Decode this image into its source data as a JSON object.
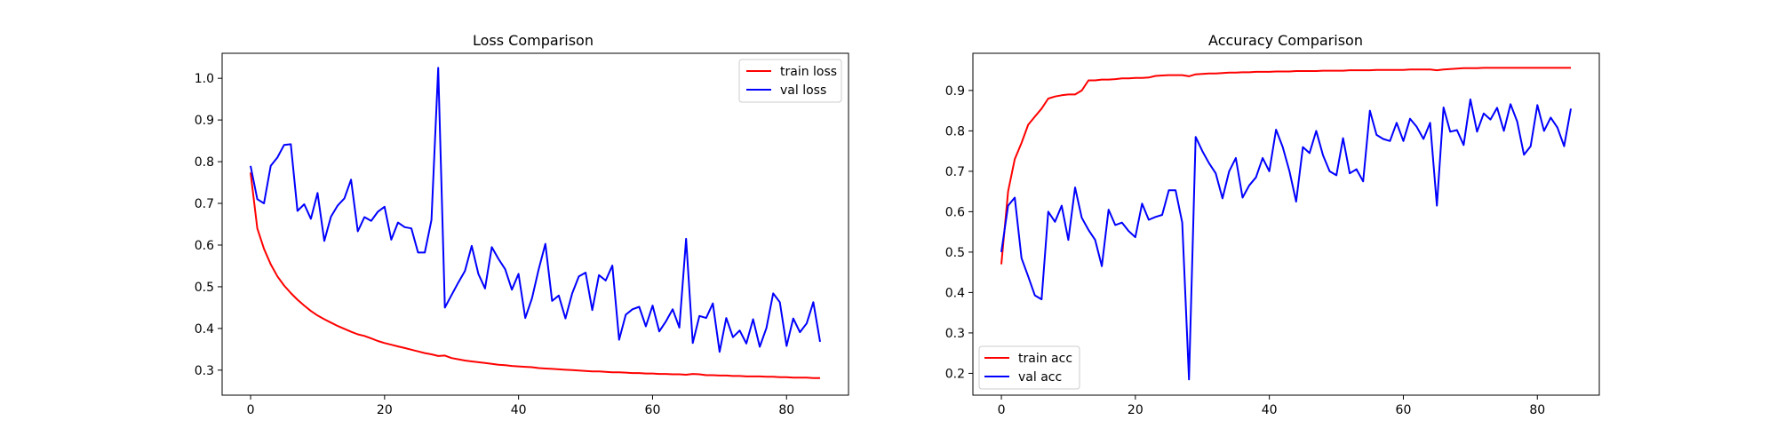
{
  "chart_data": [
    {
      "type": "line",
      "title": "Loss Comparison",
      "xlabel": "",
      "ylabel": "",
      "xlim": [
        -4.25,
        89.25
      ],
      "ylim": [
        0.24,
        1.06
      ],
      "xticks": [
        0,
        20,
        40,
        60,
        80
      ],
      "yticks": [
        0.3,
        0.4,
        0.5,
        0.6,
        0.7,
        0.8,
        0.9,
        1.0
      ],
      "ytick_decimals": 1,
      "legend_position": "top-right",
      "grid": false,
      "series": [
        {
          "name": "train loss",
          "color": "#ff0000",
          "values": [
            0.774,
            0.64,
            0.591,
            0.554,
            0.525,
            0.503,
            0.485,
            0.469,
            0.455,
            0.442,
            0.431,
            0.422,
            0.414,
            0.406,
            0.399,
            0.392,
            0.386,
            0.382,
            0.376,
            0.37,
            0.365,
            0.361,
            0.357,
            0.353,
            0.349,
            0.345,
            0.341,
            0.338,
            0.334,
            0.335,
            0.329,
            0.326,
            0.323,
            0.321,
            0.319,
            0.317,
            0.315,
            0.313,
            0.312,
            0.31,
            0.309,
            0.308,
            0.307,
            0.305,
            0.304,
            0.303,
            0.302,
            0.301,
            0.3,
            0.299,
            0.298,
            0.297,
            0.297,
            0.296,
            0.295,
            0.295,
            0.294,
            0.293,
            0.293,
            0.292,
            0.292,
            0.291,
            0.291,
            0.29,
            0.29,
            0.289,
            0.291,
            0.29,
            0.288,
            0.288,
            0.287,
            0.287,
            0.286,
            0.286,
            0.285,
            0.285,
            0.285,
            0.284,
            0.284,
            0.283,
            0.283,
            0.282,
            0.282,
            0.282,
            0.281,
            0.281
          ]
        },
        {
          "name": "val loss",
          "color": "#0000ff",
          "values": [
            0.79,
            0.71,
            0.7,
            0.79,
            0.81,
            0.84,
            0.842,
            0.682,
            0.698,
            0.663,
            0.725,
            0.61,
            0.668,
            0.695,
            0.712,
            0.757,
            0.633,
            0.667,
            0.658,
            0.68,
            0.692,
            0.613,
            0.654,
            0.643,
            0.64,
            0.582,
            0.582,
            0.66,
            1.025,
            0.45,
            0.48,
            0.51,
            0.538,
            0.598,
            0.531,
            0.496,
            0.595,
            0.567,
            0.542,
            0.493,
            0.531,
            0.425,
            0.472,
            0.542,
            0.603,
            0.466,
            0.479,
            0.424,
            0.484,
            0.525,
            0.534,
            0.444,
            0.528,
            0.515,
            0.551,
            0.373,
            0.433,
            0.446,
            0.452,
            0.405,
            0.455,
            0.393,
            0.417,
            0.446,
            0.402,
            0.615,
            0.365,
            0.43,
            0.425,
            0.46,
            0.344,
            0.425,
            0.379,
            0.395,
            0.364,
            0.422,
            0.356,
            0.401,
            0.484,
            0.463,
            0.358,
            0.424,
            0.391,
            0.412,
            0.463,
            0.368
          ]
        }
      ]
    },
    {
      "type": "line",
      "title": "Accuracy Comparison",
      "xlabel": "",
      "ylabel": "",
      "xlim": [
        -4.25,
        89.25
      ],
      "ylim": [
        0.146,
        0.992
      ],
      "xticks": [
        0,
        20,
        40,
        60,
        80
      ],
      "yticks": [
        0.2,
        0.3,
        0.4,
        0.5,
        0.6,
        0.7,
        0.8,
        0.9
      ],
      "ytick_decimals": 1,
      "legend_position": "bottom-left",
      "grid": false,
      "series": [
        {
          "name": "train acc",
          "color": "#ff0000",
          "values": [
            0.47,
            0.65,
            0.73,
            0.77,
            0.815,
            0.835,
            0.855,
            0.88,
            0.885,
            0.888,
            0.89,
            0.89,
            0.9,
            0.925,
            0.925,
            0.927,
            0.927,
            0.928,
            0.93,
            0.93,
            0.931,
            0.931,
            0.932,
            0.936,
            0.937,
            0.938,
            0.938,
            0.938,
            0.935,
            0.94,
            0.941,
            0.942,
            0.942,
            0.943,
            0.944,
            0.944,
            0.945,
            0.945,
            0.946,
            0.946,
            0.946,
            0.947,
            0.947,
            0.947,
            0.948,
            0.948,
            0.948,
            0.948,
            0.949,
            0.949,
            0.949,
            0.949,
            0.95,
            0.95,
            0.95,
            0.95,
            0.951,
            0.951,
            0.951,
            0.951,
            0.951,
            0.952,
            0.952,
            0.952,
            0.952,
            0.95,
            0.952,
            0.953,
            0.954,
            0.955,
            0.955,
            0.955,
            0.956,
            0.956,
            0.956,
            0.956,
            0.956,
            0.956,
            0.956,
            0.956,
            0.956,
            0.956,
            0.956,
            0.956,
            0.956,
            0.956
          ]
        },
        {
          "name": "val acc",
          "color": "#0000ff",
          "values": [
            0.5,
            0.615,
            0.635,
            0.485,
            0.44,
            0.393,
            0.383,
            0.6,
            0.575,
            0.615,
            0.53,
            0.66,
            0.585,
            0.555,
            0.53,
            0.465,
            0.605,
            0.567,
            0.573,
            0.552,
            0.537,
            0.62,
            0.58,
            0.587,
            0.592,
            0.653,
            0.653,
            0.573,
            0.185,
            0.785,
            0.75,
            0.72,
            0.695,
            0.633,
            0.7,
            0.733,
            0.635,
            0.665,
            0.685,
            0.733,
            0.7,
            0.803,
            0.76,
            0.7,
            0.625,
            0.76,
            0.745,
            0.8,
            0.74,
            0.7,
            0.69,
            0.782,
            0.695,
            0.705,
            0.675,
            0.85,
            0.79,
            0.78,
            0.775,
            0.82,
            0.775,
            0.83,
            0.81,
            0.78,
            0.82,
            0.615,
            0.858,
            0.798,
            0.802,
            0.765,
            0.878,
            0.798,
            0.843,
            0.828,
            0.857,
            0.8,
            0.866,
            0.823,
            0.741,
            0.762,
            0.864,
            0.8,
            0.833,
            0.808,
            0.762,
            0.855
          ]
        }
      ]
    }
  ]
}
